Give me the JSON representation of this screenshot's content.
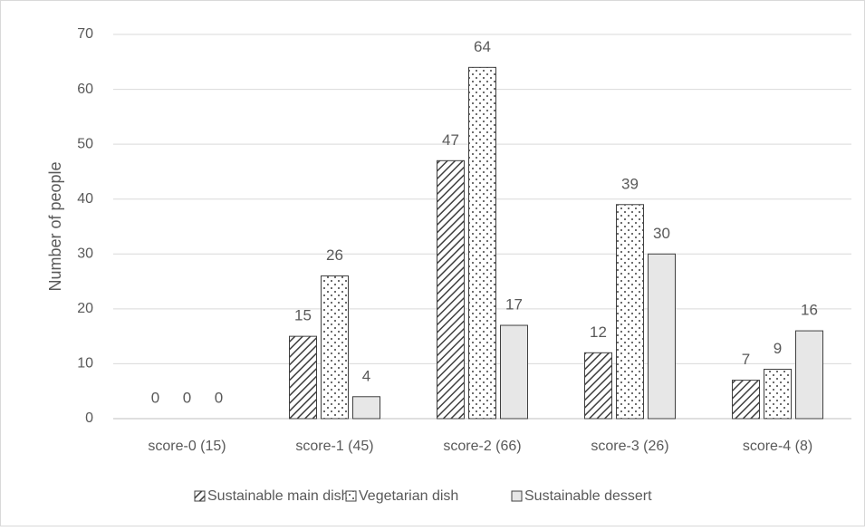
{
  "chart_data": {
    "type": "bar",
    "ylabel": "Number of people",
    "categories": [
      "score-0 (15)",
      "score-1 (45)",
      "score-2 (66)",
      "score-3 (26)",
      "score-4 (8)"
    ],
    "series": [
      {
        "name": "Sustainable main dish",
        "color": "#404040",
        "pattern": "hatch",
        "values": [
          0,
          15,
          47,
          12,
          7
        ]
      },
      {
        "name": "Vegetarian dish",
        "color": "#404040",
        "pattern": "dots",
        "values": [
          0,
          26,
          64,
          39,
          9
        ]
      },
      {
        "name": "Sustainable dessert",
        "color": "#e7e7e7",
        "pattern": "solid",
        "values": [
          0,
          4,
          17,
          30,
          16
        ]
      }
    ],
    "ylim": [
      0,
      70
    ],
    "yticks": [
      0,
      10,
      20,
      30,
      40,
      50,
      60,
      70
    ],
    "grid": true,
    "data_labels": true,
    "legend": "bottom"
  }
}
